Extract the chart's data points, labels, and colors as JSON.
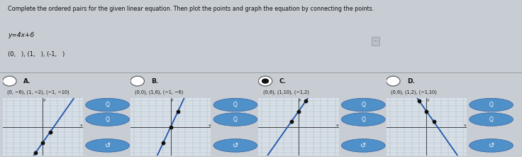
{
  "title": "Complete the ordered pairs for the given linear equation. Then plot the points and graph the equation by connecting the points.",
  "equation": "y=4x+6",
  "pairs_prompt": "(0,   ), (1,   ), (-1,   )",
  "options": [
    "A.",
    "B.",
    "C.",
    "D."
  ],
  "option_points": [
    "(0, −6), (1, −2), (−1, −10)",
    "(0,0), (1,6), (−1, −6)",
    "(0,6), (1,10), (−1,2)",
    "(0,6), (1,2), (−1,10)"
  ],
  "option_coords": [
    [
      [
        0,
        -6
      ],
      [
        1,
        -2
      ],
      [
        -1,
        -10
      ]
    ],
    [
      [
        0,
        0
      ],
      [
        1,
        6
      ],
      [
        -1,
        -6
      ]
    ],
    [
      [
        0,
        6
      ],
      [
        1,
        10
      ],
      [
        -1,
        2
      ]
    ],
    [
      [
        0,
        6
      ],
      [
        1,
        2
      ],
      [
        -1,
        10
      ]
    ]
  ],
  "selected_option": 2,
  "bg_top": "#c8cdd4",
  "bg_bottom": "#b8c4cc",
  "grid_bg": "#d8e0e8",
  "grid_line_color": "#b8c4cc",
  "line_color": "#2255aa",
  "dot_color": "#111111",
  "text_color": "#111111",
  "separator_color": "#888888",
  "icon_fill": "#5090c8",
  "icon_edge": "#3060a0"
}
